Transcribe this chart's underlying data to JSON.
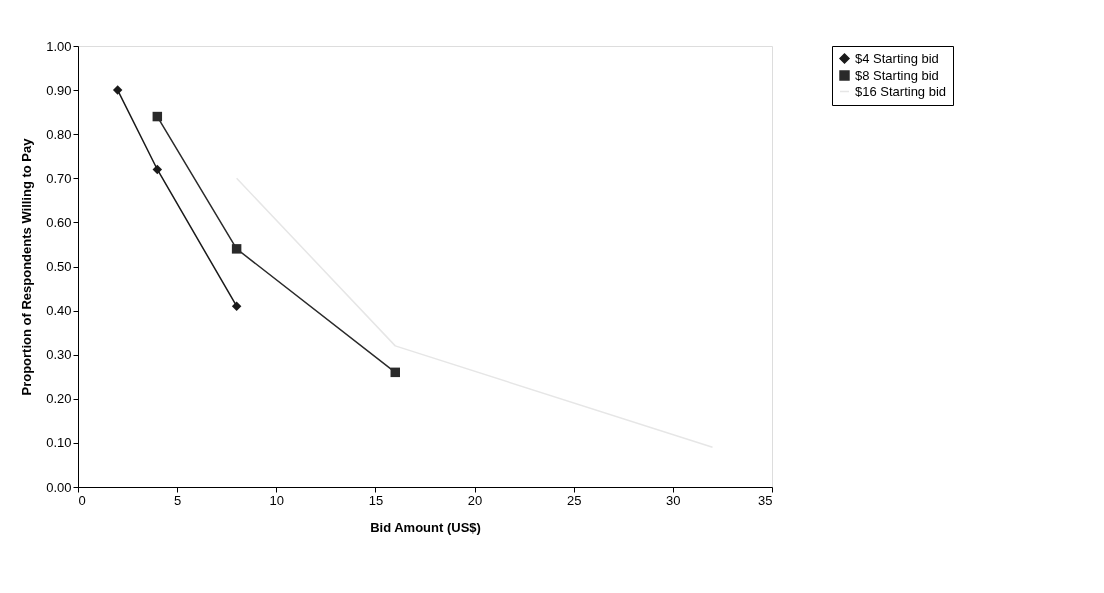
{
  "chart_data": {
    "type": "line",
    "xlabel": "Bid Amount (US$)",
    "ylabel": "Proportion of Respondents Willing to Pay",
    "xlim": [
      0,
      35
    ],
    "xticks": [
      0,
      5,
      10,
      15,
      20,
      25,
      30,
      35
    ],
    "ylim": [
      0,
      1
    ],
    "yticks": [
      {
        "value": 0,
        "label": "0.00"
      },
      {
        "value": 0.1,
        "label": "0.10"
      },
      {
        "value": 0.2,
        "label": "0.20"
      },
      {
        "value": 0.3,
        "label": "0.30"
      },
      {
        "value": 0.4,
        "label": "0.40"
      },
      {
        "value": 0.5,
        "label": "0.50"
      },
      {
        "value": 0.6,
        "label": "0.60"
      },
      {
        "value": 0.7,
        "label": "0.70"
      },
      {
        "value": 0.8,
        "label": "0.80"
      },
      {
        "value": 0.9,
        "label": "0.90"
      },
      {
        "value": 1,
        "label": "1.00"
      }
    ],
    "grid": false,
    "legend": "right",
    "line_style": "solid",
    "series": [
      {
        "name": "$4 Starting bid",
        "color": "#1a1a1a",
        "marker": "diamond",
        "x": [
          2,
          4,
          8
        ],
        "values": [
          0.9,
          0.72,
          0.41
        ]
      },
      {
        "name": "$8 Starting bid",
        "color": "#2a2a2a",
        "marker": "square",
        "x": [
          4,
          8,
          16
        ],
        "values": [
          0.84,
          0.54,
          0.26
        ]
      },
      {
        "name": "$16 Starting bid",
        "color": "#e6e6e6",
        "marker": "none",
        "x": [
          8,
          16,
          32
        ],
        "values": [
          0.7,
          0.32,
          0.09
        ]
      }
    ]
  }
}
